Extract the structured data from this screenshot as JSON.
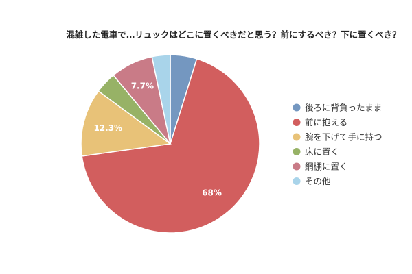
{
  "chart_data": {
    "type": "pie",
    "title": "混雑した電車で…リュックはどこに置くべきだと思う？前にするべき？下に置くべき？",
    "legend_position": "right",
    "slices": [
      {
        "label": "後ろに背負ったまま",
        "value": 4.8,
        "color": "#7497c0",
        "data_label": ""
      },
      {
        "label": "前に抱える",
        "value": 68.0,
        "color": "#d25e5e",
        "data_label": "68%"
      },
      {
        "label": "腕を下げて手に持つ",
        "value": 12.3,
        "color": "#e8c278",
        "data_label": "12.3%"
      },
      {
        "label": "床に置く",
        "value": 3.9,
        "color": "#97b266",
        "data_label": ""
      },
      {
        "label": "網棚に置く",
        "value": 7.7,
        "color": "#c97b87",
        "data_label": "7.7%"
      },
      {
        "label": "その他",
        "value": 3.3,
        "color": "#a9d4ea",
        "data_label": ""
      }
    ]
  }
}
